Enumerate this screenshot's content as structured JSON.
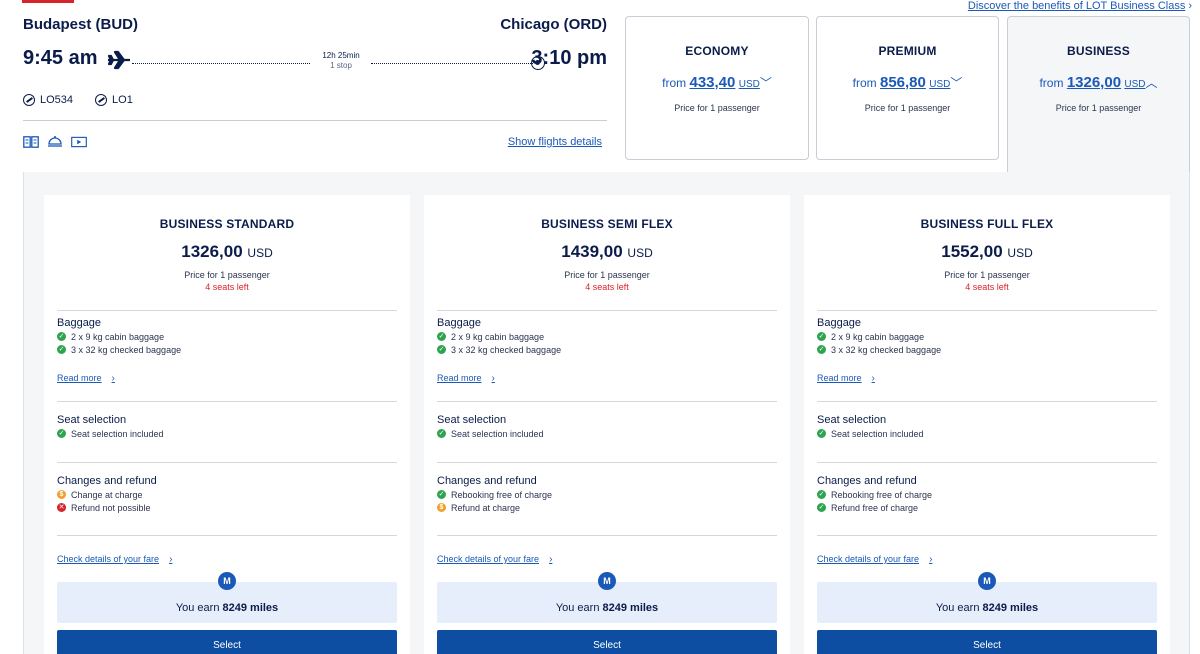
{
  "discover_link": "Discover the benefits of LOT Business Class",
  "flight": {
    "origin": "Budapest (BUD)",
    "destination": "Chicago (ORD)",
    "departure_time": "9:45 am",
    "arrival_time": "3:10 pm",
    "duration": "12h 25min",
    "stops": "1 stop",
    "flight_numbers": [
      "LO534",
      "LO1"
    ],
    "show_details": "Show flights details"
  },
  "classes": [
    {
      "name": "ECONOMY",
      "from": "from",
      "price": "433,40",
      "currency": "USD",
      "note": "Price for 1 passenger",
      "chevron": "﹀"
    },
    {
      "name": "PREMIUM",
      "from": "from",
      "price": "856,80",
      "currency": "USD",
      "note": "Price for 1 passenger",
      "chevron": "﹀"
    },
    {
      "name": "BUSINESS",
      "from": "from",
      "price": "1326,00",
      "currency": "USD",
      "note": "Price for 1 passenger",
      "chevron": "︿"
    }
  ],
  "fares": [
    {
      "title": "BUSINESS STANDARD",
      "price": "1326,00",
      "currency": "USD",
      "note": "Price for 1 passenger",
      "seats_left": "4 seats left",
      "baggage_title": "Baggage",
      "baggage": [
        "2 x 9 kg cabin baggage",
        "3 x 32 kg checked baggage"
      ],
      "read_more": "Read more",
      "seat_title": "Seat selection",
      "seat": "Seat selection included",
      "changes_title": "Changes and refund",
      "changes": [
        {
          "text": "Change at charge",
          "status": "warn"
        },
        {
          "text": "Refund not possible",
          "status": "no"
        }
      ],
      "check_details": "Check details of your fare",
      "miles_badge": "M",
      "miles_prefix": "You earn",
      "miles_value": "8249 miles",
      "select": "Select"
    },
    {
      "title": "BUSINESS SEMI FLEX",
      "price": "1439,00",
      "currency": "USD",
      "note": "Price for 1 passenger",
      "seats_left": "4 seats left",
      "baggage_title": "Baggage",
      "baggage": [
        "2 x 9 kg cabin baggage",
        "3 x 32 kg checked baggage"
      ],
      "read_more": "Read more",
      "seat_title": "Seat selection",
      "seat": "Seat selection included",
      "changes_title": "Changes and refund",
      "changes": [
        {
          "text": "Rebooking free of charge",
          "status": "ok"
        },
        {
          "text": "Refund at charge",
          "status": "warn"
        }
      ],
      "check_details": "Check details of your fare",
      "miles_badge": "M",
      "miles_prefix": "You earn",
      "miles_value": "8249 miles",
      "select": "Select"
    },
    {
      "title": "BUSINESS FULL FLEX",
      "price": "1552,00",
      "currency": "USD",
      "note": "Price for 1 passenger",
      "seats_left": "4 seats left",
      "baggage_title": "Baggage",
      "baggage": [
        "2 x 9 kg cabin baggage",
        "3 x 32 kg checked baggage"
      ],
      "read_more": "Read more",
      "seat_title": "Seat selection",
      "seat": "Seat selection included",
      "changes_title": "Changes and refund",
      "changes": [
        {
          "text": "Rebooking free of charge",
          "status": "ok"
        },
        {
          "text": "Refund free of charge",
          "status": "ok"
        }
      ],
      "check_details": "Check details of your fare",
      "miles_badge": "M",
      "miles_prefix": "You earn",
      "miles_value": "8249 miles",
      "select": "Select"
    }
  ],
  "colors": {
    "brand_blue": "#0d4ea2",
    "link_blue": "#1b59b8",
    "navy": "#0b1c4a",
    "alert_red": "#d8232a",
    "ok_green": "#2ea44f",
    "warn_orange": "#f0a02a"
  }
}
